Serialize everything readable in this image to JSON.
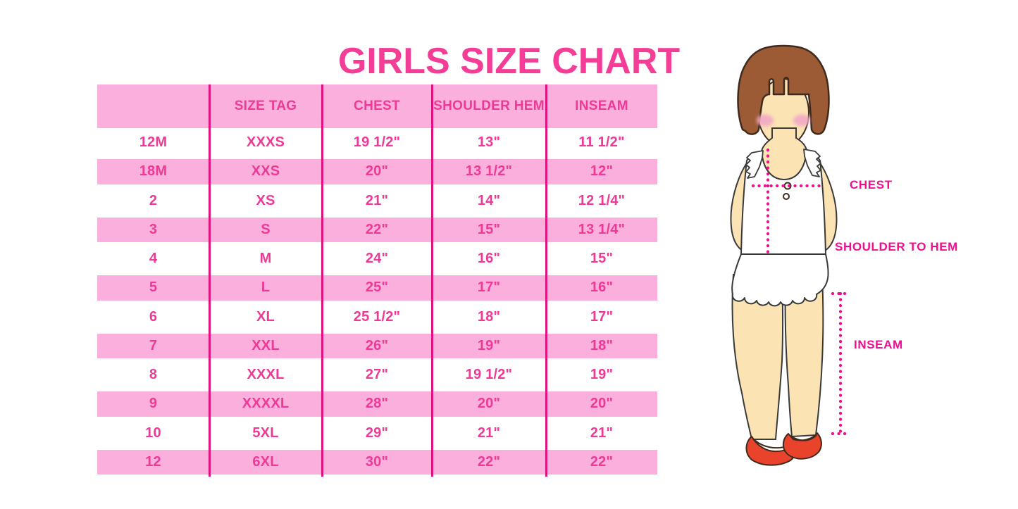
{
  "chart_data": {
    "type": "table",
    "title": "GIRLS SIZE CHART",
    "headers": [
      "",
      "SIZE TAG",
      "CHEST",
      "SHOULDER HEM",
      "INSEAM"
    ],
    "rows": [
      [
        "12M",
        "XXXS",
        "19 1/2\"",
        "13\"",
        "11 1/2\""
      ],
      [
        "18M",
        "XXS",
        "20\"",
        "13 1/2\"",
        "12\""
      ],
      [
        "2",
        "XS",
        "21\"",
        "14\"",
        "12 1/4\""
      ],
      [
        "3",
        "S",
        "22\"",
        "15\"",
        "13 1/4\""
      ],
      [
        "4",
        "M",
        "24\"",
        "16\"",
        "15\""
      ],
      [
        "5",
        "L",
        "25\"",
        "17\"",
        "16\""
      ],
      [
        "6",
        "XL",
        "25 1/2\"",
        "18\"",
        "17\""
      ],
      [
        "7",
        "XXL",
        "26\"",
        "19\"",
        "18\""
      ],
      [
        "8",
        "XXXL",
        "27\"",
        "19 1/2\"",
        "19\""
      ],
      [
        "9",
        "XXXXL",
        "28\"",
        "20\"",
        "20\""
      ],
      [
        "10",
        "5XL",
        "29\"",
        "21\"",
        "21\""
      ],
      [
        "12",
        "6XL",
        "30\"",
        "22\"",
        "22\""
      ]
    ],
    "row_stripe_pattern": "white/pink alternating, header pink"
  },
  "diagram": {
    "chest_label": "CHEST",
    "shoulder_to_hem_label": "SHOULDER TO HEM",
    "inseam_label": "INSEAM"
  },
  "colors": {
    "title_pink": "#F43D97",
    "row_band_pink": "#FAAFDC",
    "table_text_pink": "#EE3A96",
    "column_divider_magenta": "#E0127E",
    "measure_label_magenta": "#F20D8E",
    "hair_brown": "#9C5B35",
    "skin_tone": "#FBE3B4",
    "shoe_red": "#EA432C"
  }
}
